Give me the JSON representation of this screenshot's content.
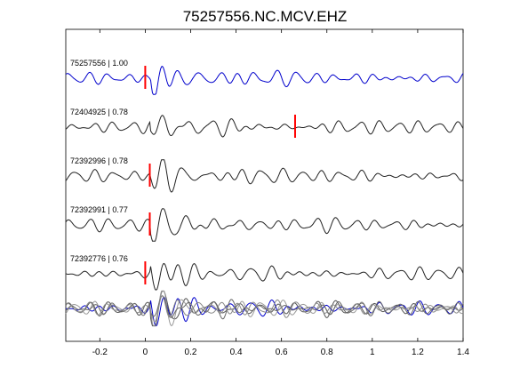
{
  "chart_data": {
    "type": "line",
    "title": "75257556.NC.MCV.EHZ",
    "xlabel": "",
    "ylabel": "",
    "xlim": [
      -0.35,
      1.4
    ],
    "xticks": [
      -0.2,
      0,
      0.2,
      0.4,
      0.6,
      0.8,
      1,
      1.2,
      1.4
    ],
    "grid": false,
    "traces": [
      {
        "label": "75257556 | 1.00",
        "color": "#0000cc",
        "pick_time": 0.0,
        "seed": 11
      },
      {
        "label": "72404925 | 0.78",
        "color": "#222222",
        "pick_time": 0.66,
        "seed": 23
      },
      {
        "label": "72392996 | 0.78",
        "color": "#222222",
        "pick_time": 0.02,
        "seed": 37
      },
      {
        "label": "72392991 | 0.77",
        "color": "#222222",
        "pick_time": 0.02,
        "seed": 41
      },
      {
        "label": "72392776 | 0.76",
        "color": "#222222",
        "pick_time": 0.0,
        "seed": 53
      }
    ],
    "stack_colors": [
      "#888888",
      "#666666",
      "#999999",
      "#555555",
      "#0000cc"
    ],
    "pick_color": "#ff0000"
  }
}
